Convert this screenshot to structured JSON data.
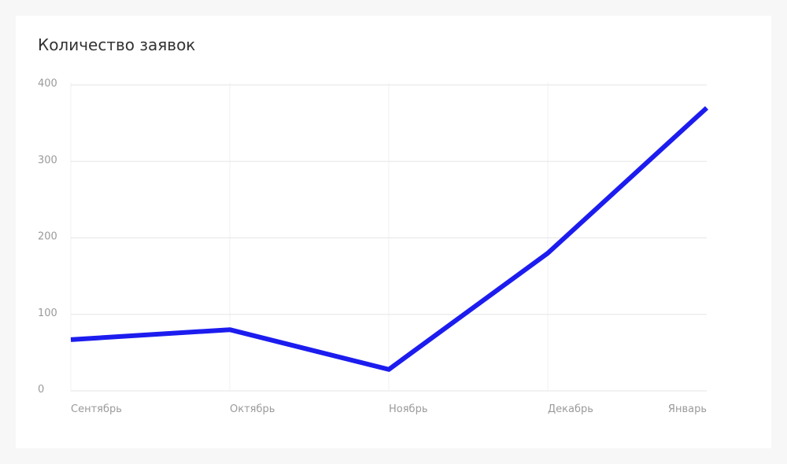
{
  "chart_data": {
    "type": "line",
    "title": "Количество заявок",
    "categories": [
      "Сентябрь",
      "Октябрь",
      "Ноябрь",
      "Декабрь",
      "Январь"
    ],
    "series": [
      {
        "color": "#1c1cef",
        "values": [
          67,
          80,
          28,
          180,
          370
        ]
      }
    ],
    "ylim": [
      0,
      400
    ],
    "yticks": [
      0,
      100,
      200,
      300,
      400
    ],
    "grid": true
  }
}
